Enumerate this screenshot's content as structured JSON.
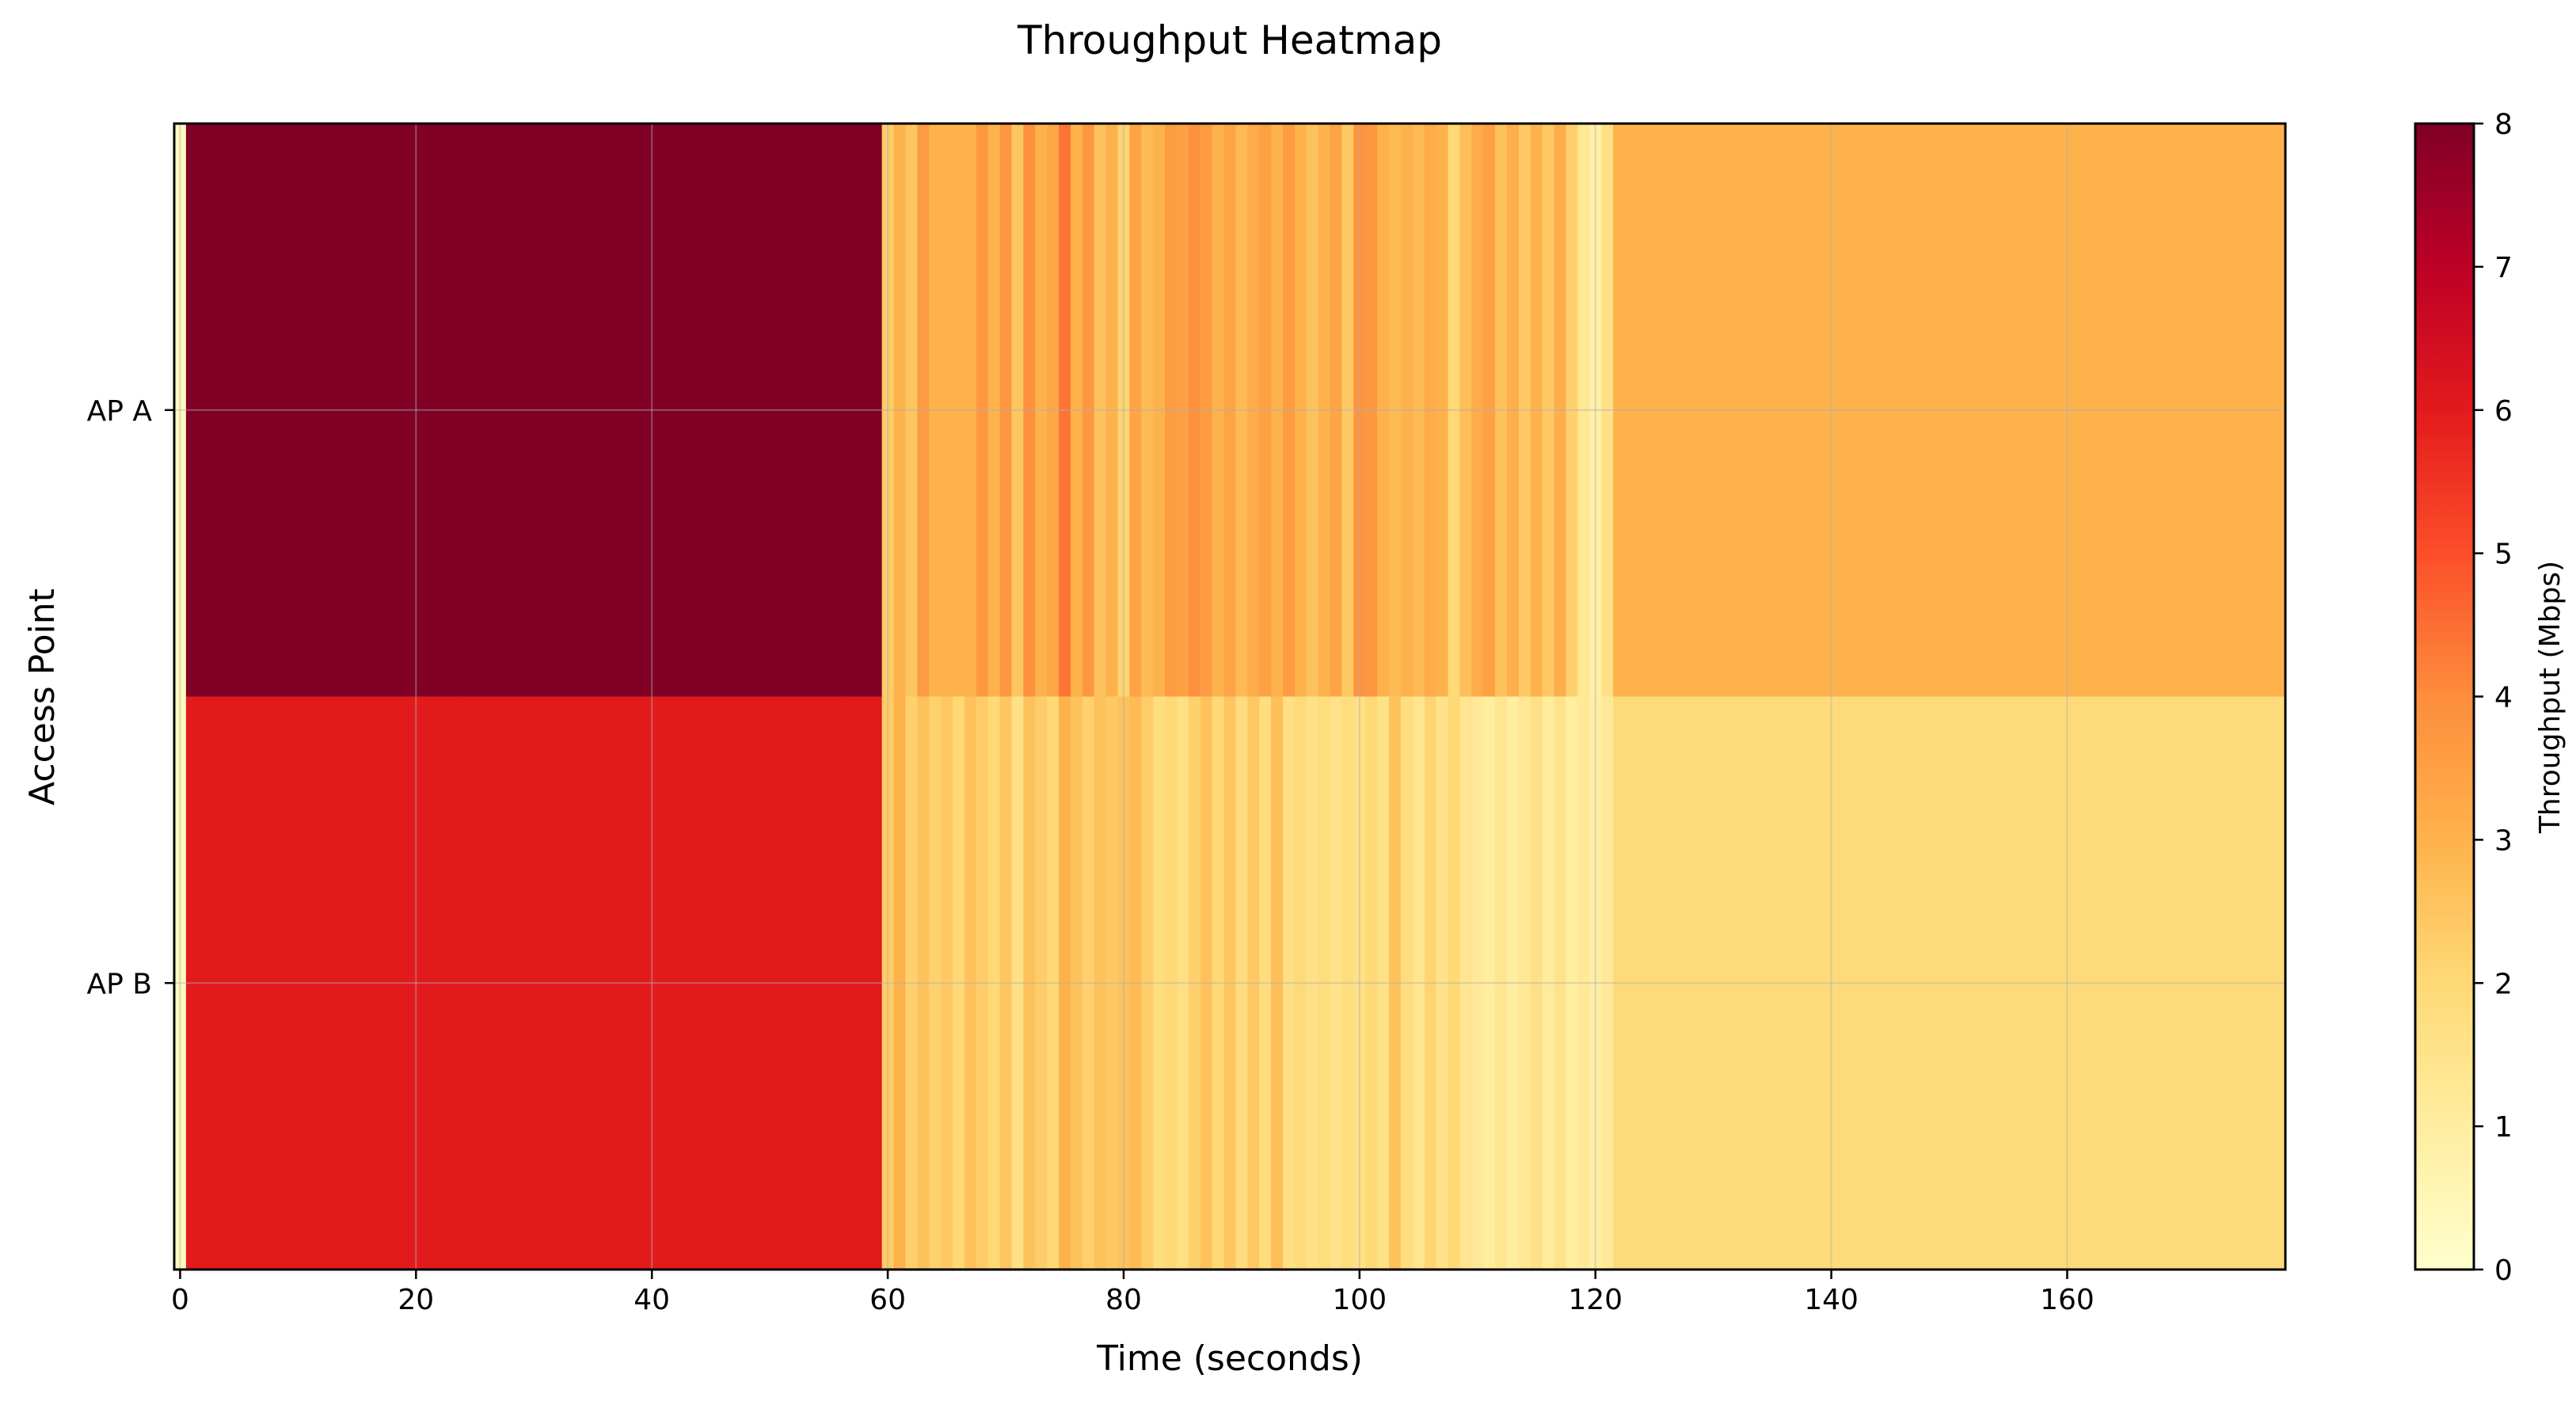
{
  "chart_data": {
    "type": "heatmap",
    "title": "Throughput Heatmap",
    "xlabel": "Time (seconds)",
    "ylabel": "Access Point",
    "rows": [
      "AP A",
      "AP B"
    ],
    "xlim": [
      -0.5,
      178.5
    ],
    "x_ticks": [
      0,
      20,
      40,
      60,
      80,
      100,
      120,
      140,
      160
    ],
    "x_tick_labels": [
      "0",
      "20",
      "40",
      "60",
      "80",
      "100",
      "120",
      "140",
      "160"
    ],
    "grid": true,
    "colormap": "YlOrRd",
    "colorbar": {
      "label": "Throughput (Mbps)",
      "range": [
        0,
        8
      ],
      "ticks": [
        0,
        1,
        2,
        3,
        4,
        5,
        6,
        7,
        8
      ],
      "tick_labels": [
        "0",
        "1",
        "2",
        "3",
        "4",
        "5",
        "6",
        "7",
        "8"
      ]
    },
    "cells": [
      {
        "row": "AP A",
        "segments": [
          [
            0,
            0.3
          ],
          [
            1,
            8.0
          ],
          [
            59,
            8.0
          ],
          [
            60,
            2.3
          ],
          [
            61,
            3.0
          ],
          [
            62,
            2.5
          ],
          [
            63,
            3.6
          ],
          [
            64,
            3.0
          ],
          [
            65,
            3.0
          ],
          [
            66,
            3.0
          ],
          [
            67,
            3.0
          ],
          [
            68,
            3.7
          ],
          [
            69,
            3.0
          ],
          [
            70,
            3.7
          ],
          [
            71,
            2.5
          ],
          [
            72,
            3.9
          ],
          [
            73,
            3.0
          ],
          [
            74,
            3.3
          ],
          [
            75,
            4.4
          ],
          [
            76,
            3.0
          ],
          [
            77,
            3.7
          ],
          [
            78,
            2.6
          ],
          [
            79,
            3.0
          ],
          [
            80,
            2.1
          ],
          [
            81,
            3.4
          ],
          [
            82,
            2.8
          ],
          [
            83,
            3.0
          ],
          [
            84,
            3.6
          ],
          [
            85,
            3.5
          ],
          [
            86,
            3.9
          ],
          [
            87,
            3.6
          ],
          [
            88,
            3.0
          ],
          [
            89,
            3.4
          ],
          [
            90,
            2.8
          ],
          [
            91,
            3.2
          ],
          [
            92,
            3.5
          ],
          [
            93,
            3.0
          ],
          [
            94,
            3.6
          ],
          [
            95,
            3.0
          ],
          [
            96,
            2.6
          ],
          [
            97,
            3.0
          ],
          [
            98,
            3.4
          ],
          [
            99,
            2.4
          ],
          [
            100,
            3.8
          ],
          [
            101,
            3.7
          ],
          [
            102,
            3.0
          ],
          [
            103,
            2.8
          ],
          [
            104,
            3.0
          ],
          [
            105,
            2.8
          ],
          [
            106,
            3.2
          ],
          [
            107,
            3.0
          ],
          [
            108,
            2.0
          ],
          [
            109,
            2.7
          ],
          [
            110,
            3.2
          ],
          [
            111,
            3.5
          ],
          [
            112,
            2.6
          ],
          [
            113,
            3.1
          ],
          [
            114,
            2.4
          ],
          [
            115,
            3.0
          ],
          [
            116,
            2.4
          ],
          [
            117,
            3.1
          ],
          [
            118,
            2.2
          ],
          [
            119,
            1.3
          ],
          [
            120,
            0.8
          ],
          [
            121,
            1.6
          ],
          [
            122,
            3.0
          ],
          [
            178,
            3.0
          ]
        ]
      },
      {
        "row": "AP B",
        "segments": [
          [
            0,
            0.3
          ],
          [
            1,
            6.0
          ],
          [
            59,
            6.0
          ],
          [
            60,
            2.3
          ],
          [
            61,
            3.0
          ],
          [
            62,
            2.2
          ],
          [
            63,
            2.6
          ],
          [
            64,
            2.2
          ],
          [
            65,
            2.4
          ],
          [
            66,
            2.0
          ],
          [
            67,
            2.6
          ],
          [
            68,
            2.3
          ],
          [
            69,
            2.0
          ],
          [
            70,
            2.5
          ],
          [
            71,
            1.6
          ],
          [
            72,
            2.6
          ],
          [
            73,
            2.3
          ],
          [
            74,
            2.0
          ],
          [
            75,
            3.0
          ],
          [
            76,
            2.6
          ],
          [
            77,
            2.2
          ],
          [
            78,
            2.6
          ],
          [
            79,
            2.4
          ],
          [
            80,
            2.6
          ],
          [
            81,
            2.8
          ],
          [
            82,
            2.3
          ],
          [
            83,
            1.8
          ],
          [
            84,
            2.0
          ],
          [
            85,
            1.7
          ],
          [
            86,
            2.2
          ],
          [
            87,
            2.6
          ],
          [
            88,
            2.0
          ],
          [
            89,
            2.5
          ],
          [
            90,
            1.8
          ],
          [
            91,
            2.4
          ],
          [
            92,
            1.8
          ],
          [
            93,
            2.7
          ],
          [
            94,
            1.7
          ],
          [
            95,
            1.9
          ],
          [
            96,
            1.6
          ],
          [
            97,
            1.8
          ],
          [
            98,
            1.5
          ],
          [
            99,
            1.8
          ],
          [
            100,
            1.6
          ],
          [
            101,
            2.0
          ],
          [
            102,
            1.6
          ],
          [
            103,
            2.6
          ],
          [
            104,
            1.8
          ],
          [
            105,
            1.4
          ],
          [
            106,
            2.1
          ],
          [
            107,
            1.5
          ],
          [
            108,
            2.0
          ],
          [
            109,
            1.4
          ],
          [
            110,
            1.2
          ],
          [
            111,
            1.0
          ],
          [
            112,
            1.4
          ],
          [
            113,
            1.0
          ],
          [
            114,
            1.3
          ],
          [
            115,
            1.6
          ],
          [
            116,
            1.1
          ],
          [
            117,
            1.5
          ],
          [
            118,
            1.0
          ],
          [
            119,
            1.2
          ],
          [
            120,
            0.9
          ],
          [
            121,
            1.2
          ],
          [
            122,
            1.9
          ],
          [
            178,
            1.9
          ]
        ]
      }
    ]
  }
}
